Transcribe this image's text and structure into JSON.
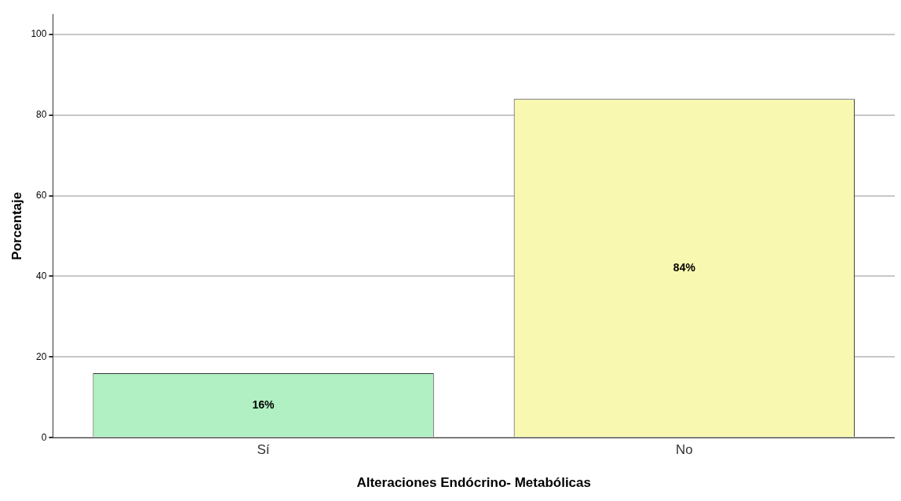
{
  "chart_data": {
    "type": "bar",
    "xlabel": "Alteraciones Endócrino- Metabólicas",
    "ylabel": "Porcentaje",
    "categories": [
      "Sí",
      "No"
    ],
    "values": [
      16,
      84
    ],
    "colors": [
      "#b0f0c2",
      "#f8f8b0"
    ],
    "value_labels": [
      "16%",
      "84%"
    ],
    "ylim": [
      0,
      105
    ],
    "yticks": [
      0,
      20,
      40,
      60,
      80,
      100
    ],
    "grid": "y",
    "legend": false
  }
}
